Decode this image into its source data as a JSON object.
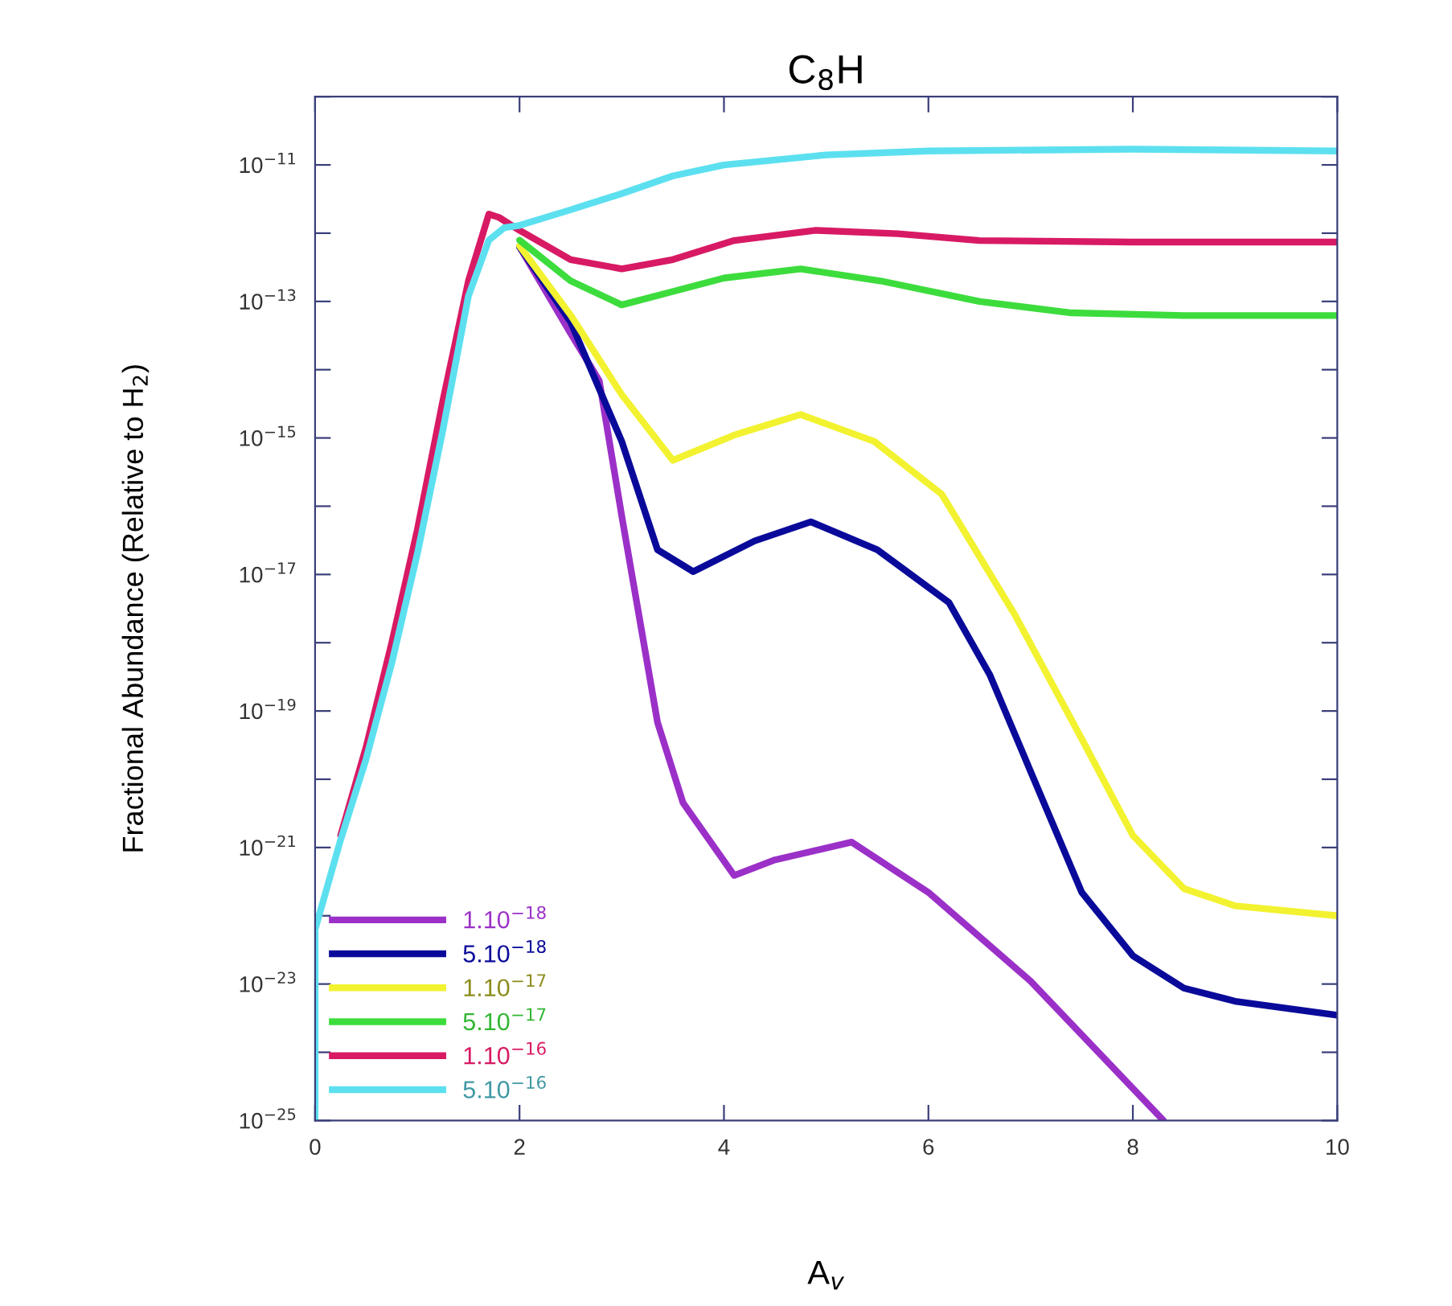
{
  "chart_data": {
    "type": "line",
    "title": "C$_{8}$H",
    "xlabel": "A$_{v}$",
    "ylabel": "Fractional Abundance (Relative to H$_{2}$)",
    "log": "y",
    "grid": false,
    "legend": "bottom left",
    "marker": "none",
    "line_style": "solid",
    "xlim": [
      0,
      10
    ],
    "xticks": [
      0,
      2,
      4,
      6,
      8,
      10
    ],
    "ylim": [
      1e-25,
      1e-10
    ],
    "yticks": [
      {
        "value": 1e-25,
        "label": "10$^{−25}$"
      },
      {
        "value": 1e-24,
        "label": null
      },
      {
        "value": 1e-23,
        "label": "10$^{−23}$"
      },
      {
        "value": 1e-22,
        "label": null
      },
      {
        "value": 1e-21,
        "label": "10$^{−21}$"
      },
      {
        "value": 1e-20,
        "label": null
      },
      {
        "value": 1e-19,
        "label": "10$^{−19}$"
      },
      {
        "value": 1e-18,
        "label": null
      },
      {
        "value": 1e-17,
        "label": "10$^{−17}$"
      },
      {
        "value": 1e-16,
        "label": null
      },
      {
        "value": 1e-15,
        "label": "10$^{−15}$"
      },
      {
        "value": 1e-14,
        "label": null
      },
      {
        "value": 1e-13,
        "label": "10$^{−13}$"
      },
      {
        "value": 1e-12,
        "label": null
      },
      {
        "value": 1e-11,
        "label": "10$^{−11}$"
      },
      {
        "value": 1e-10,
        "label": null
      }
    ],
    "series": [
      {
        "name": "1.10$^{−18}$",
        "color": "#9b30c8",
        "x": [
          2.0,
          2.5,
          2.78,
          3.0,
          3.35,
          3.6,
          4.1,
          4.5,
          5.25,
          6,
          7,
          8.3
        ],
        "values": [
          6.3e-13,
          3.4e-14,
          6.9e-15,
          7.2e-17,
          6.8e-20,
          4.5e-21,
          3.9e-22,
          6.6e-22,
          1.2e-21,
          2.2e-22,
          1.1e-23,
          1e-25
        ]
      },
      {
        "name": "5.10$^{−18}$",
        "color": "#0a0a9a",
        "x": [
          2.0,
          2.5,
          3.0,
          3.35,
          3.7,
          4.3,
          4.85,
          5.5,
          6.2,
          6.6,
          7.0,
          7.5,
          8,
          8.5,
          9,
          10
        ],
        "values": [
          6.3e-13,
          5e-14,
          8.9e-16,
          2.3e-17,
          1.1e-17,
          3.1e-17,
          5.9e-17,
          2.3e-17,
          3.9e-18,
          3.4e-19,
          1.3e-20,
          2.2e-22,
          2.6e-23,
          8.7e-24,
          5.6e-24,
          3.5e-24
        ]
      },
      {
        "name": "1.10$^{−17}$",
        "color": "#f2f230",
        "x": [
          2.0,
          2.5,
          3.0,
          3.5,
          4.1,
          4.75,
          5.47,
          6.13,
          6.85,
          7.5,
          8.0,
          8.5,
          9,
          10
        ],
        "values": [
          6.5e-13,
          6.3e-14,
          4.3e-15,
          4.7e-16,
          1.1e-15,
          2.2e-15,
          8.9e-16,
          1.5e-16,
          2.5e-18,
          3.9e-20,
          1.5e-21,
          2.5e-22,
          1.4e-22,
          1e-22
        ]
      },
      {
        "name": "5.10$^{−17}$",
        "color": "#3ddc3d",
        "x": [
          2.0,
          2.5,
          3.0,
          3.5,
          4.0,
          4.75,
          5.53,
          6.5,
          7.4,
          8.5,
          10
        ],
        "values": [
          7.9e-13,
          2e-13,
          8.9e-14,
          1.4e-13,
          2.2e-13,
          3e-13,
          2e-13,
          1e-13,
          6.8e-14,
          6.2e-14,
          6.2e-14
        ]
      },
      {
        "name": "1.10$^{−16}$",
        "color": "#d81a64",
        "x": [
          0.25,
          0.5,
          0.75,
          1.0,
          1.25,
          1.5,
          1.7,
          1.8,
          2.0,
          2.5,
          3.0,
          3.5,
          4.1,
          4.9,
          5.7,
          6.5,
          8,
          10
        ],
        "values": [
          1.5e-21,
          3e-20,
          1e-18,
          4.5e-17,
          3.5e-15,
          2e-13,
          1.9e-12,
          1.7e-12,
          1.1e-12,
          4.1e-13,
          3e-13,
          4.1e-13,
          7.8e-13,
          1.1e-12,
          9.8e-13,
          7.8e-13,
          7.4e-13,
          7.4e-13
        ]
      },
      {
        "name": "5.10$^{−16}$",
        "color": "#5ce0f0",
        "x": [
          0,
          0,
          0.25,
          0.5,
          0.75,
          1.0,
          1.25,
          1.5,
          1.7,
          1.85,
          2.0,
          2.5,
          3.0,
          3.5,
          4.0,
          5.0,
          6.0,
          8,
          10
        ],
        "values": [
          1e-25,
          6.3e-23,
          1.3e-21,
          2e-20,
          5e-19,
          2e-17,
          1.3e-15,
          1.2e-13,
          7.9e-13,
          1.2e-12,
          1.3e-12,
          2.2e-12,
          3.8e-12,
          6.9e-12,
          1e-11,
          1.4e-11,
          1.6e-11,
          1.7e-11,
          1.6e-11
        ]
      }
    ]
  }
}
